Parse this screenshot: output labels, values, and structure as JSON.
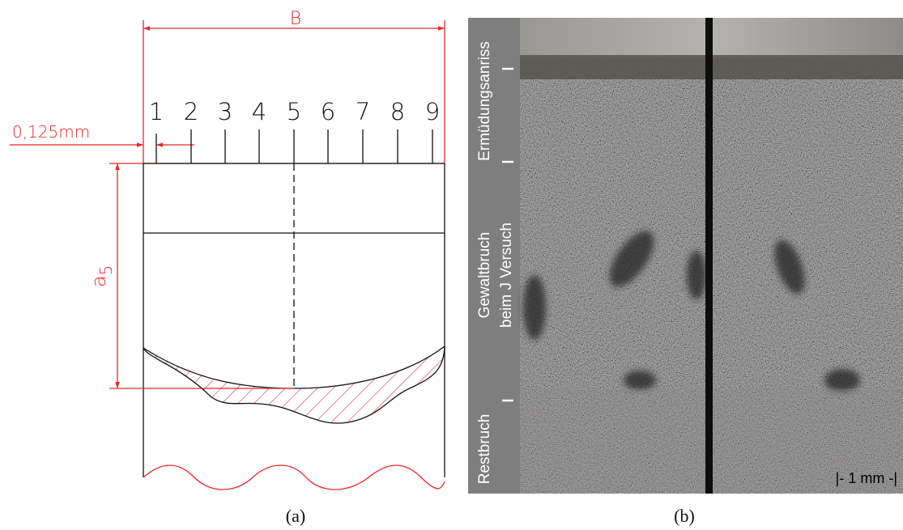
{
  "drawing": {
    "width_label": "B",
    "offset_label": "0,125mm",
    "positions": [
      1,
      2,
      3,
      4,
      5,
      6,
      7,
      8,
      9
    ],
    "depth_label": {
      "symbol": "a",
      "subscript": "5"
    },
    "caption": "(a)"
  },
  "photo": {
    "zones": [
      {
        "lines": [
          "Ermüdungsanriss"
        ]
      },
      {
        "lines": [
          "Gewaltbruch",
          "beim J Versuch"
        ]
      },
      {
        "lines": [
          "Restbruch"
        ]
      }
    ],
    "scale_bar": "|- 1 mm -|",
    "caption": "(b)"
  }
}
